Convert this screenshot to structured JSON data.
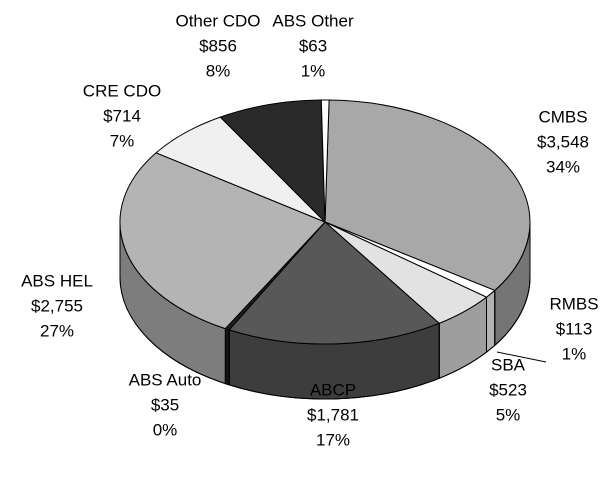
{
  "chart_data": {
    "type": "pie3d",
    "categories": [
      "CMBS",
      "RMBS",
      "SBA",
      "ABCP",
      "ABS Auto",
      "ABS HEL",
      "CRE CDO",
      "Other CDO",
      "ABS Other"
    ],
    "values": [
      3548,
      113,
      523,
      1781,
      35,
      2755,
      714,
      856,
      63
    ],
    "value_labels": [
      "$3,548",
      "$113",
      "$523",
      "$1,781",
      "$35",
      "$2,755",
      "$714",
      "$856",
      "$63"
    ],
    "percent_labels": [
      "34%",
      "1%",
      "5%",
      "17%",
      "0%",
      "27%",
      "7%",
      "8%",
      "1%"
    ],
    "colors": [
      "#a8a8a8",
      "#ffffff",
      "#e2e2e2",
      "#585858",
      "#202020",
      "#b4b4b4",
      "#f0f0f0",
      "#2a2a2a",
      "#ffffff"
    ]
  }
}
